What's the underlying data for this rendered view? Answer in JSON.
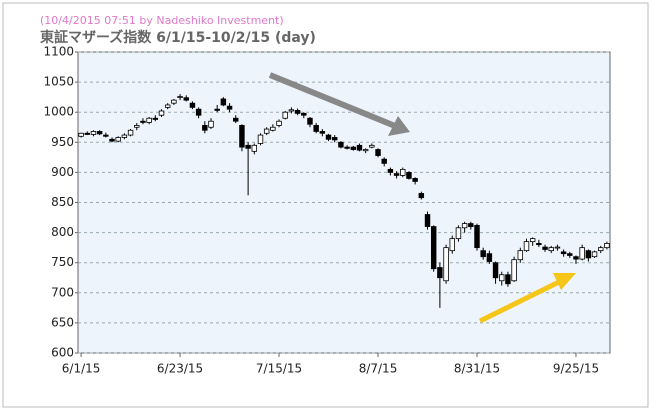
{
  "chart_data": {
    "type": "candlestick",
    "subtitle": "(10/4/2015 07:51 by Nadeshiko Investment)",
    "title": "東証マザーズ指数  6/1/15-10/2/15 (day)",
    "categories": [
      "6/1/15",
      null,
      null,
      null,
      null,
      null,
      null,
      null,
      null,
      null,
      null,
      null,
      null,
      null,
      null,
      null,
      "6/23/15",
      null,
      null,
      null,
      null,
      null,
      null,
      null,
      null,
      null,
      null,
      null,
      null,
      null,
      null,
      null,
      "7/15/15",
      null,
      null,
      null,
      null,
      null,
      null,
      null,
      null,
      null,
      null,
      null,
      null,
      null,
      null,
      null,
      "8/7/15",
      null,
      null,
      null,
      null,
      null,
      null,
      null,
      null,
      null,
      null,
      null,
      null,
      null,
      null,
      null,
      "8/31/15",
      null,
      null,
      null,
      null,
      null,
      null,
      null,
      null,
      null,
      null,
      null,
      null,
      null,
      null,
      null,
      "9/25/15",
      null,
      null,
      null,
      null,
      null
    ],
    "values": [
      [
        960,
        966,
        958,
        965
      ],
      [
        965,
        968,
        962,
        963
      ],
      [
        963,
        970,
        960,
        968
      ],
      [
        968,
        970,
        962,
        964
      ],
      [
        962,
        966,
        958,
        960
      ],
      [
        955,
        958,
        950,
        952
      ],
      [
        952,
        960,
        950,
        958
      ],
      [
        958,
        965,
        955,
        962
      ],
      [
        962,
        972,
        960,
        970
      ],
      [
        975,
        982,
        970,
        978
      ],
      [
        985,
        990,
        980,
        983
      ],
      [
        983,
        992,
        980,
        990
      ],
      [
        990,
        995,
        985,
        988
      ],
      [
        995,
        1005,
        992,
        1002
      ],
      [
        1008,
        1015,
        1005,
        1012
      ],
      [
        1015,
        1022,
        1012,
        1020
      ],
      [
        1025,
        1030,
        1020,
        1026
      ],
      [
        1024,
        1028,
        1018,
        1020
      ],
      [
        1015,
        1018,
        1005,
        1008
      ],
      [
        1005,
        1008,
        990,
        995
      ],
      [
        978,
        985,
        965,
        970
      ],
      [
        975,
        990,
        972,
        985
      ],
      [
        1005,
        1012,
        1000,
        1003
      ],
      [
        1022,
        1025,
        1010,
        1012
      ],
      [
        1010,
        1015,
        1000,
        1005
      ],
      [
        990,
        995,
        982,
        985
      ],
      [
        978,
        980,
        935,
        942
      ],
      [
        945,
        950,
        862,
        940
      ],
      [
        935,
        948,
        930,
        945
      ],
      [
        948,
        965,
        945,
        962
      ],
      [
        965,
        975,
        962,
        972
      ],
      [
        970,
        980,
        968,
        975
      ],
      [
        978,
        988,
        975,
        985
      ],
      [
        990,
        1002,
        988,
        1000
      ],
      [
        1002,
        1008,
        998,
        1004
      ],
      [
        1003,
        1006,
        995,
        998
      ],
      [
        998,
        1000,
        990,
        995
      ],
      [
        990,
        992,
        975,
        980
      ],
      [
        978,
        982,
        965,
        968
      ],
      [
        968,
        972,
        960,
        965
      ],
      [
        962,
        964,
        952,
        955
      ],
      [
        958,
        962,
        950,
        954
      ],
      [
        950,
        952,
        940,
        942
      ],
      [
        942,
        945,
        938,
        940
      ],
      [
        942,
        944,
        936,
        938
      ],
      [
        945,
        948,
        935,
        937
      ],
      [
        936,
        940,
        932,
        938
      ],
      [
        942,
        948,
        940,
        945
      ],
      [
        938,
        940,
        925,
        928
      ],
      [
        922,
        925,
        910,
        915
      ],
      [
        905,
        908,
        895,
        900
      ],
      [
        898,
        902,
        890,
        895
      ],
      [
        895,
        908,
        892,
        905
      ],
      [
        900,
        902,
        888,
        890
      ],
      [
        890,
        892,
        880,
        885
      ],
      [
        865,
        868,
        855,
        858
      ],
      [
        830,
        835,
        805,
        810
      ],
      [
        810,
        812,
        735,
        740
      ],
      [
        742,
        750,
        675,
        725
      ],
      [
        720,
        780,
        715,
        775
      ],
      [
        770,
        795,
        765,
        790
      ],
      [
        790,
        812,
        785,
        808
      ],
      [
        808,
        818,
        800,
        815
      ],
      [
        815,
        818,
        805,
        810
      ],
      [
        812,
        815,
        770,
        775
      ],
      [
        770,
        775,
        755,
        760
      ],
      [
        765,
        770,
        748,
        752
      ],
      [
        750,
        752,
        715,
        725
      ],
      [
        720,
        735,
        712,
        730
      ],
      [
        730,
        735,
        710,
        715
      ],
      [
        720,
        760,
        718,
        755
      ],
      [
        755,
        775,
        750,
        770
      ],
      [
        770,
        790,
        768,
        785
      ],
      [
        785,
        792,
        778,
        790
      ],
      [
        782,
        788,
        776,
        780
      ],
      [
        776,
        780,
        768,
        772
      ],
      [
        770,
        778,
        766,
        775
      ],
      [
        775,
        780,
        770,
        776
      ],
      [
        768,
        772,
        760,
        765
      ],
      [
        765,
        768,
        758,
        762
      ],
      [
        760,
        762,
        748,
        756
      ],
      [
        756,
        780,
        754,
        775
      ],
      [
        770,
        772,
        752,
        758
      ],
      [
        760,
        770,
        758,
        768
      ],
      [
        770,
        778,
        766,
        775
      ],
      [
        775,
        785,
        772,
        782
      ]
    ],
    "ylim": [
      600,
      1100
    ],
    "yticks": [
      600,
      650,
      700,
      750,
      800,
      850,
      900,
      950,
      1000,
      1050,
      1100
    ],
    "grid": true,
    "up_color": "#ffffff",
    "down_color": "#000000"
  }
}
